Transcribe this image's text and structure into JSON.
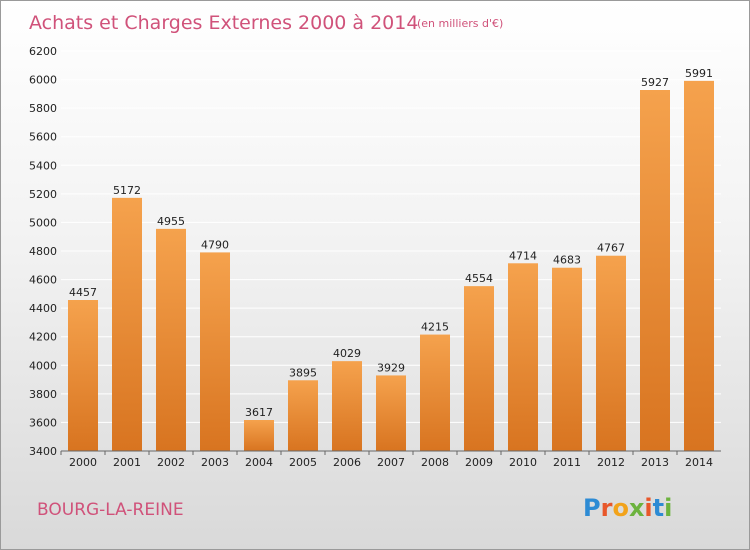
{
  "chart_data": {
    "type": "bar",
    "title": "Achats et Charges Externes 2000 à 2014",
    "subtitle": "(en milliers d'€)",
    "categories": [
      "2000",
      "2001",
      "2002",
      "2003",
      "2004",
      "2005",
      "2006",
      "2007",
      "2008",
      "2009",
      "2010",
      "2011",
      "2012",
      "2013",
      "2014"
    ],
    "values": [
      4457,
      5172,
      4955,
      4790,
      3617,
      3895,
      4029,
      3929,
      4215,
      4554,
      4714,
      4683,
      4767,
      5927,
      5991
    ],
    "ylim": [
      3400,
      6200
    ],
    "yticks": [
      3400,
      3600,
      3800,
      4000,
      4200,
      4400,
      4600,
      4800,
      5000,
      5200,
      5400,
      5600,
      5800,
      6000,
      6200
    ],
    "grid": true,
    "bar_color_top": "#f5a24d",
    "bar_color_bottom": "#d87420"
  },
  "footer": {
    "city": "BOURG-LA-REINE",
    "brand": "Proxiti"
  },
  "colors": {
    "title": "#d0527a",
    "grid": "#ffffff"
  }
}
